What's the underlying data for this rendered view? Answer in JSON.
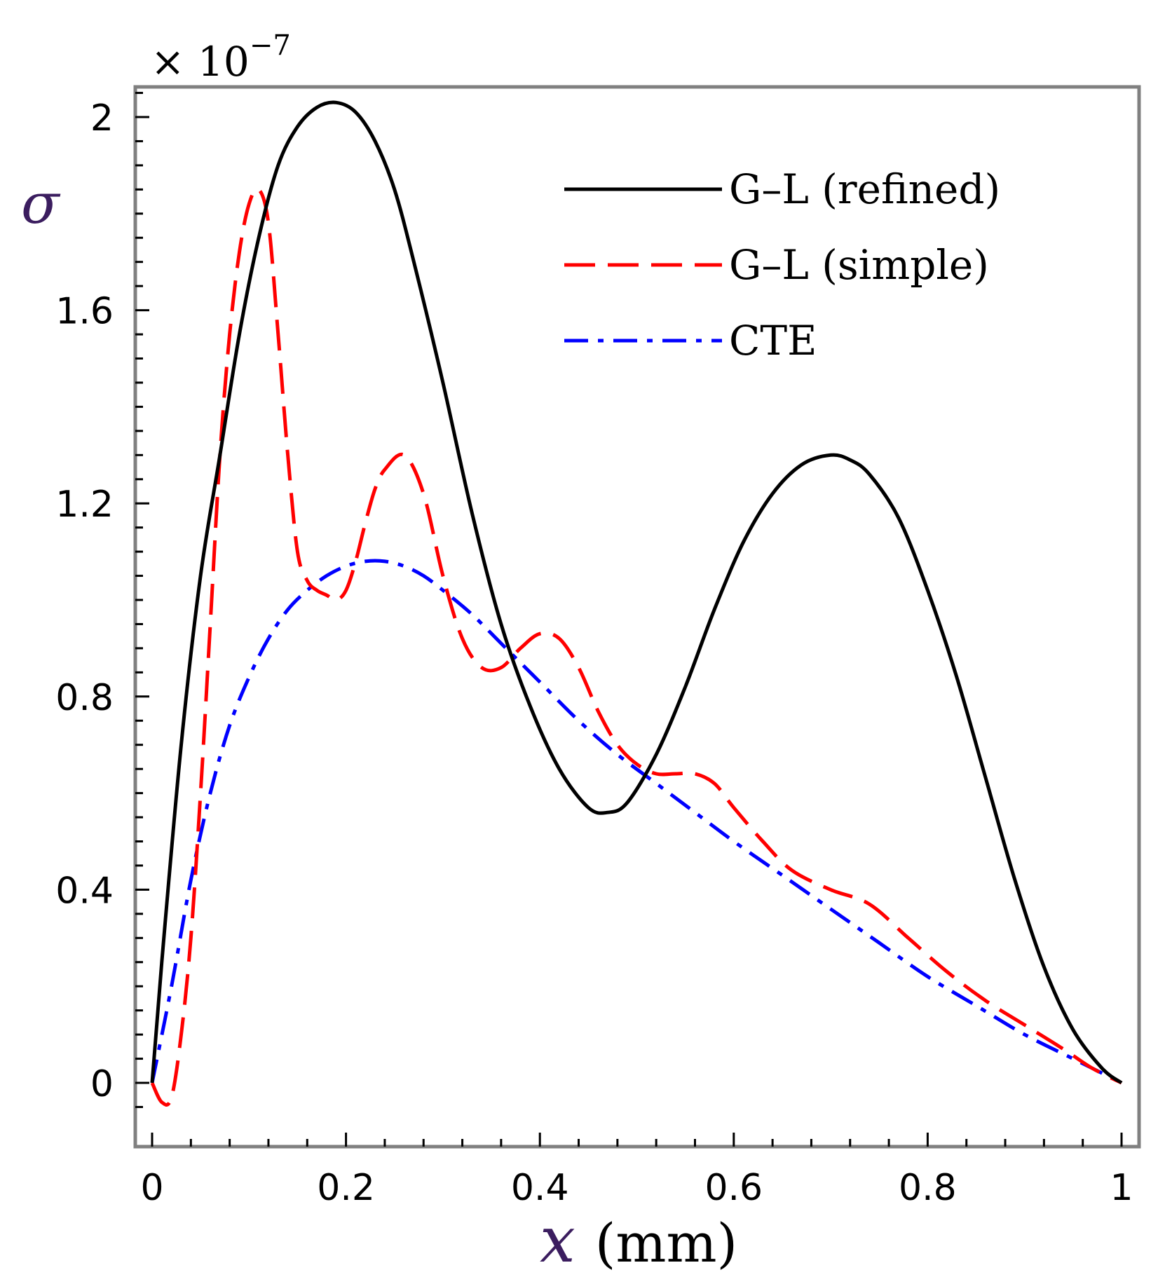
{
  "chart_data": {
    "type": "line",
    "title": "",
    "multiplier": "× 10",
    "multiplier_exponent": "−7",
    "ylabel": "σ",
    "xlabel_symbol": "x",
    "xlabel_unit": "(mm)",
    "xlim": [
      0,
      1
    ],
    "ylim": [
      -0.05,
      2.07
    ],
    "xticks": [
      0,
      0.2,
      0.4,
      0.6,
      0.8,
      1
    ],
    "xtick_labels": [
      "0",
      "0.2",
      "0.4",
      "0.6",
      "0.8",
      "1"
    ],
    "yticks": [
      0,
      0.4,
      0.8,
      1.2,
      1.6,
      2
    ],
    "ytick_labels": [
      "0",
      "0.4",
      "0.8",
      "1.2",
      "1.6",
      "2"
    ],
    "legend_position": "top-right",
    "series": [
      {
        "name": "G–L (refined)",
        "color": "#000000",
        "style": "solid",
        "x": [
          0,
          0.01,
          0.03,
          0.05,
          0.07,
          0.09,
          0.11,
          0.13,
          0.15,
          0.17,
          0.19,
          0.21,
          0.23,
          0.25,
          0.27,
          0.3,
          0.33,
          0.36,
          0.39,
          0.42,
          0.45,
          0.47,
          0.49,
          0.52,
          0.55,
          0.58,
          0.61,
          0.64,
          0.67,
          0.7,
          0.72,
          0.74,
          0.77,
          0.8,
          0.83,
          0.86,
          0.89,
          0.92,
          0.95,
          0.98,
          1.0
        ],
        "y": [
          0,
          0.25,
          0.7,
          1.05,
          1.3,
          1.55,
          1.75,
          1.9,
          1.98,
          2.02,
          2.03,
          2.01,
          1.95,
          1.85,
          1.7,
          1.45,
          1.18,
          0.95,
          0.78,
          0.65,
          0.57,
          0.56,
          0.58,
          0.68,
          0.82,
          0.98,
          1.12,
          1.22,
          1.28,
          1.3,
          1.29,
          1.26,
          1.17,
          1.02,
          0.84,
          0.63,
          0.42,
          0.24,
          0.11,
          0.03,
          0
        ]
      },
      {
        "name": "G–L (simple)",
        "color": "#ff0000",
        "style": "dashed",
        "x": [
          0,
          0.01,
          0.02,
          0.03,
          0.04,
          0.05,
          0.06,
          0.07,
          0.08,
          0.09,
          0.1,
          0.11,
          0.12,
          0.13,
          0.14,
          0.15,
          0.16,
          0.17,
          0.18,
          0.19,
          0.2,
          0.21,
          0.22,
          0.23,
          0.24,
          0.26,
          0.28,
          0.3,
          0.32,
          0.34,
          0.36,
          0.38,
          0.4,
          0.42,
          0.44,
          0.46,
          0.48,
          0.5,
          0.52,
          0.54,
          0.56,
          0.58,
          0.6,
          0.63,
          0.66,
          0.7,
          0.74,
          0.78,
          0.82,
          0.86,
          0.9,
          0.94,
          0.97,
          1.0
        ],
        "y": [
          0,
          -0.04,
          -0.03,
          0.1,
          0.3,
          0.6,
          0.95,
          1.3,
          1.55,
          1.72,
          1.82,
          1.85,
          1.78,
          1.55,
          1.3,
          1.1,
          1.04,
          1.02,
          1.01,
          1.0,
          1.02,
          1.08,
          1.16,
          1.23,
          1.27,
          1.3,
          1.22,
          1.05,
          0.92,
          0.86,
          0.86,
          0.9,
          0.93,
          0.92,
          0.86,
          0.77,
          0.7,
          0.66,
          0.64,
          0.64,
          0.64,
          0.62,
          0.57,
          0.5,
          0.44,
          0.4,
          0.37,
          0.3,
          0.23,
          0.17,
          0.12,
          0.07,
          0.03,
          0
        ]
      },
      {
        "name": "CTE",
        "color": "#0000ff",
        "style": "dashdot",
        "x": [
          0,
          0.02,
          0.04,
          0.06,
          0.08,
          0.1,
          0.12,
          0.14,
          0.16,
          0.18,
          0.2,
          0.22,
          0.24,
          0.26,
          0.28,
          0.3,
          0.33,
          0.36,
          0.4,
          0.44,
          0.48,
          0.52,
          0.56,
          0.6,
          0.65,
          0.7,
          0.75,
          0.8,
          0.85,
          0.9,
          0.95,
          1.0
        ],
        "y": [
          0,
          0.2,
          0.42,
          0.6,
          0.74,
          0.84,
          0.92,
          0.98,
          1.02,
          1.05,
          1.07,
          1.08,
          1.08,
          1.07,
          1.05,
          1.02,
          0.97,
          0.91,
          0.83,
          0.75,
          0.68,
          0.62,
          0.56,
          0.5,
          0.43,
          0.36,
          0.29,
          0.22,
          0.16,
          0.1,
          0.05,
          0
        ]
      }
    ]
  }
}
